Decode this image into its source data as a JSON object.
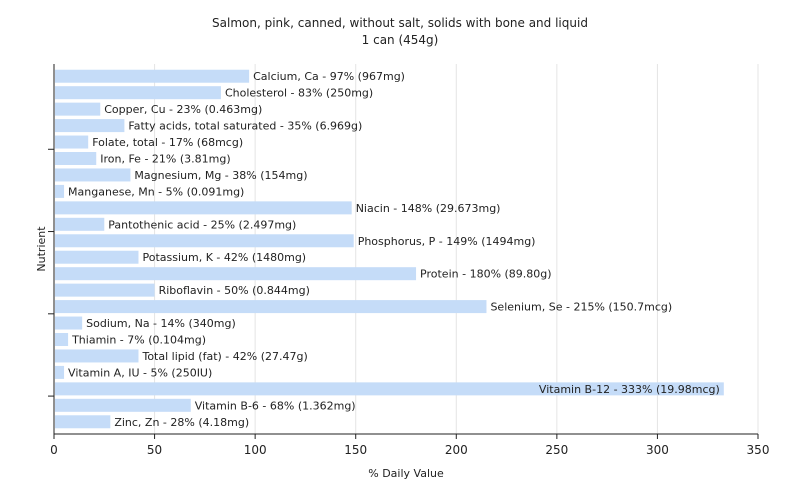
{
  "chart_data": {
    "type": "bar",
    "orientation": "horizontal",
    "title": "Salmon, pink, canned, without salt, solids with bone and liquid",
    "subtitle": "1 can (454g)",
    "xlabel": "% Daily Value",
    "ylabel": "Nutrient",
    "xlim": [
      0,
      350
    ],
    "xticks": [
      0,
      50,
      100,
      150,
      200,
      250,
      300,
      350
    ],
    "grid": true,
    "bar_color": "#c5dcf8",
    "categories": [
      "Calcium, Ca",
      "Cholesterol",
      "Copper, Cu",
      "Fatty acids, total saturated",
      "Folate, total",
      "Iron, Fe",
      "Magnesium, Mg",
      "Manganese, Mn",
      "Niacin",
      "Pantothenic acid",
      "Phosphorus, P",
      "Potassium, K",
      "Protein",
      "Riboflavin",
      "Selenium, Se",
      "Sodium, Na",
      "Thiamin",
      "Total lipid (fat)",
      "Vitamin A, IU",
      "Vitamin B-12",
      "Vitamin B-6",
      "Zinc, Zn"
    ],
    "values": [
      97,
      83,
      23,
      35,
      17,
      21,
      38,
      5,
      148,
      25,
      149,
      42,
      180,
      50,
      215,
      14,
      7,
      42,
      5,
      333,
      68,
      28
    ],
    "labels": [
      "Calcium, Ca - 97% (967mg)",
      "Cholesterol - 83% (250mg)",
      "Copper, Cu - 23% (0.463mg)",
      "Fatty acids, total saturated - 35% (6.969g)",
      "Folate, total - 17% (68mcg)",
      "Iron, Fe - 21% (3.81mg)",
      "Magnesium, Mg - 38% (154mg)",
      "Manganese, Mn - 5% (0.091mg)",
      "Niacin - 148% (29.673mg)",
      "Pantothenic acid - 25% (2.497mg)",
      "Phosphorus, P - 149% (1494mg)",
      "Potassium, K - 42% (1480mg)",
      "Protein - 180% (89.80g)",
      "Riboflavin - 50% (0.844mg)",
      "Selenium, Se - 215% (150.7mcg)",
      "Sodium, Na - 14% (340mg)",
      "Thiamin - 7% (0.104mg)",
      "Total lipid (fat) - 42% (27.47g)",
      "Vitamin A, IU - 5% (250IU)",
      "Vitamin B-12 - 333% (19.98mcg)",
      "Vitamin B-6 - 68% (1.362mg)",
      "Zinc, Zn - 28% (4.18mg)"
    ]
  }
}
